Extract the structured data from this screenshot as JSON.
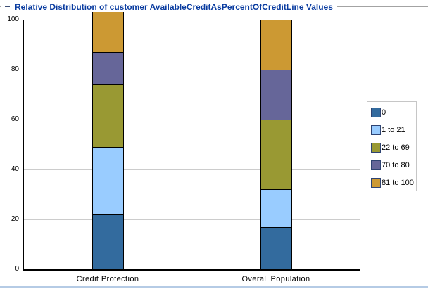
{
  "panel": {
    "title_color": "#0a3ca0",
    "border_bottom_color": "#b5cbe5"
  },
  "chart_data": {
    "type": "bar",
    "stacked": true,
    "title": "Relative Distribution of customer AvailableCreditAsPercentOfCreditLine Values",
    "categories": [
      "Credit Protection",
      "Overall Population"
    ],
    "series": [
      {
        "name": "0",
        "color": "#336b9e",
        "values": [
          22,
          17
        ]
      },
      {
        "name": "1 to 21",
        "color": "#99ccff",
        "values": [
          27,
          15
        ]
      },
      {
        "name": "22 to 69",
        "color": "#999933",
        "values": [
          25,
          28
        ]
      },
      {
        "name": "70 to 80",
        "color": "#666699",
        "values": [
          13,
          20
        ]
      },
      {
        "name": "81 to 100",
        "color": "#cc9933",
        "values": [
          20,
          20
        ]
      }
    ],
    "xlabel": "",
    "ylabel": "",
    "ylim": [
      0,
      100
    ],
    "yticks": [
      0,
      20,
      40,
      60,
      80,
      100
    ],
    "grid": "horizontal",
    "legend_position": "right"
  }
}
